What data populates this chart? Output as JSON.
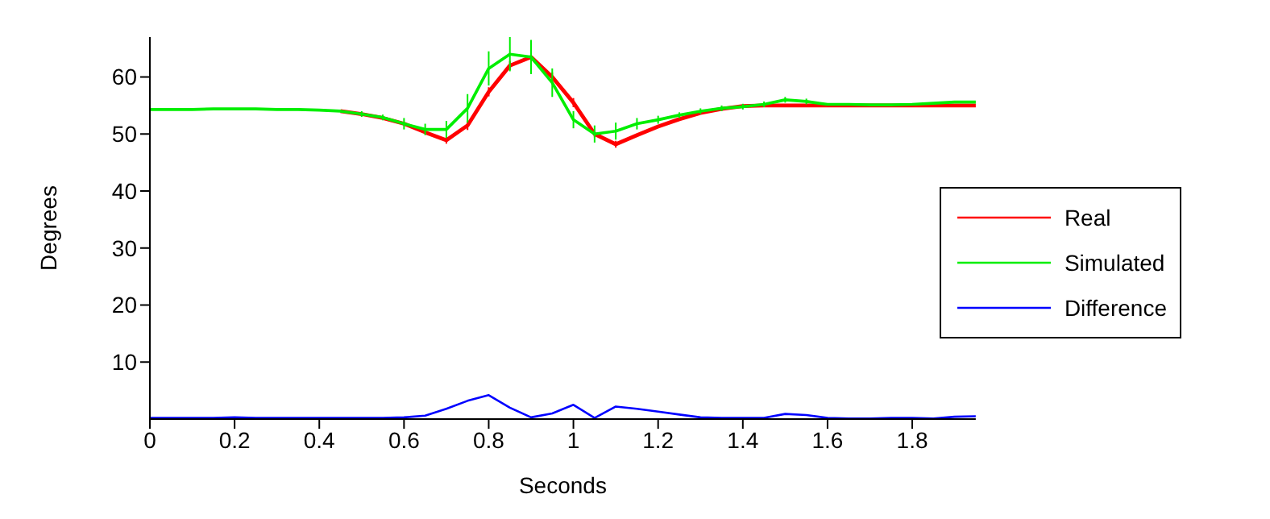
{
  "chart_data": {
    "type": "line",
    "xlabel": "Seconds",
    "ylabel": "Degrees",
    "x": [
      0,
      0.05,
      0.1,
      0.15,
      0.2,
      0.25,
      0.3,
      0.35,
      0.4,
      0.45,
      0.5,
      0.55,
      0.6,
      0.65,
      0.7,
      0.75,
      0.8,
      0.85,
      0.9,
      0.95,
      1,
      1.05,
      1.1,
      1.15,
      1.2,
      1.25,
      1.3,
      1.35,
      1.4,
      1.45,
      1.5,
      1.55,
      1.6,
      1.65,
      1.7,
      1.75,
      1.8,
      1.85,
      1.9,
      1.95
    ],
    "series": [
      {
        "name": "Real",
        "color": "#ff0000",
        "values": [
          null,
          null,
          null,
          null,
          null,
          null,
          null,
          null,
          null,
          54.0,
          53.5,
          52.8,
          51.8,
          50.3,
          48.9,
          51.5,
          57.4,
          62,
          63.5,
          60,
          55.5,
          50,
          48.2,
          49.8,
          51.3,
          52.6,
          53.7,
          54.4,
          54.9,
          55.0,
          55.0,
          55.0,
          55.0,
          55.0,
          55.0,
          55.0,
          55.0,
          55.0,
          55.0,
          55.0
        ],
        "errors": [
          null,
          null,
          null,
          null,
          null,
          null,
          null,
          null,
          null,
          null,
          null,
          null,
          null,
          null,
          0.6,
          0.8,
          0.8,
          0.8,
          0.8,
          0.8,
          0.8,
          0.6,
          0.6,
          null,
          null,
          null,
          null,
          null,
          null,
          null,
          null,
          null,
          null,
          null,
          null,
          null,
          null,
          null,
          null,
          null
        ]
      },
      {
        "name": "Simulated",
        "color": "#00ee00",
        "values": [
          54.3,
          54.3,
          54.3,
          54.4,
          54.4,
          54.4,
          54.3,
          54.3,
          54.2,
          54.0,
          53.5,
          52.9,
          51.8,
          50.8,
          50.8,
          54.5,
          61.5,
          64,
          63.5,
          59,
          52.5,
          50,
          50.5,
          51.8,
          52.5,
          53.3,
          54.0,
          54.5,
          54.8,
          55.2,
          56.0,
          55.7,
          55.2,
          55.2,
          55.1,
          55.1,
          55.2,
          55.4,
          55.6,
          55.6
        ],
        "errors": [
          null,
          null,
          null,
          null,
          null,
          null,
          null,
          null,
          null,
          null,
          0.5,
          0.5,
          1,
          1,
          1.5,
          2.5,
          3,
          3,
          3,
          2.5,
          1.5,
          1.5,
          1.5,
          1,
          0.7,
          0.5,
          0.5,
          0.5,
          0.5,
          0.5,
          0.5,
          0.5,
          null,
          null,
          null,
          null,
          null,
          null,
          null,
          null
        ]
      },
      {
        "name": "Difference",
        "color": "#0000ff",
        "values": [
          0.2,
          0.2,
          0.2,
          0.2,
          0.3,
          0.2,
          0.2,
          0.2,
          0.2,
          0.2,
          0.2,
          0.2,
          0.3,
          0.6,
          1.8,
          3.2,
          4.2,
          2,
          0.3,
          1,
          2.5,
          0.2,
          2.2,
          1.8,
          1.3,
          0.8,
          0.3,
          0.2,
          0.2,
          0.2,
          0.9,
          0.7,
          0.2,
          0.1,
          0.1,
          0.2,
          0.2,
          0.1,
          0.4,
          0.5
        ]
      }
    ],
    "xlim": [
      0,
      1.95
    ],
    "xticks": [
      0,
      0.2,
      0.4,
      0.6,
      0.8,
      1,
      1.2,
      1.4,
      1.6,
      1.8
    ],
    "ylim": [
      0,
      67
    ],
    "yticks": [
      10,
      20,
      30,
      40,
      50,
      60
    ],
    "legend": "right",
    "grid": false,
    "marker": "none",
    "line_style": "solid"
  }
}
